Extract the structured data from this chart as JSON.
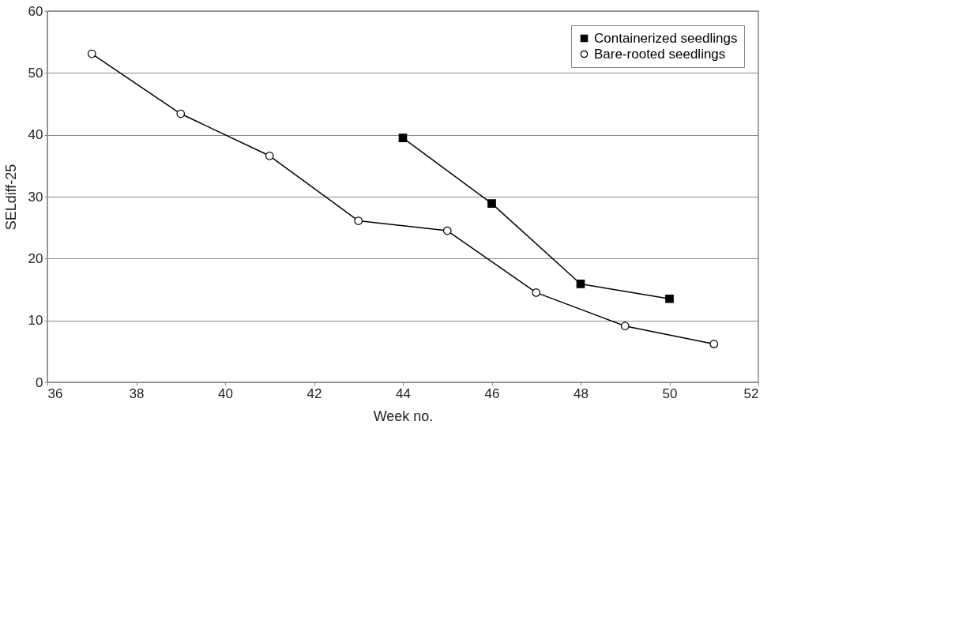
{
  "chart_data": {
    "type": "line",
    "xlabel": "Week no.",
    "ylabel": "SELdiff-25",
    "xlim": [
      36,
      52
    ],
    "xticks": [
      36,
      38,
      40,
      42,
      44,
      46,
      48,
      50,
      52
    ],
    "ylim": [
      0,
      60
    ],
    "yticks": [
      0,
      10,
      20,
      30,
      40,
      50,
      60
    ],
    "grid": "y",
    "legend": "top right",
    "series": [
      {
        "name": "Containerized seedlings",
        "color": "#000000",
        "marker": "square",
        "x": [
          44,
          46,
          48,
          50
        ],
        "values": [
          39.5,
          28.9,
          15.9,
          13.5
        ]
      },
      {
        "name": "Bare-rooted seedlings",
        "color": "#000000",
        "marker": "circle",
        "x": [
          37,
          39,
          41,
          43,
          45,
          47,
          49,
          51
        ],
        "values": [
          53.1,
          43.4,
          36.6,
          26.1,
          24.5,
          14.5,
          9.1,
          6.2
        ]
      }
    ]
  }
}
